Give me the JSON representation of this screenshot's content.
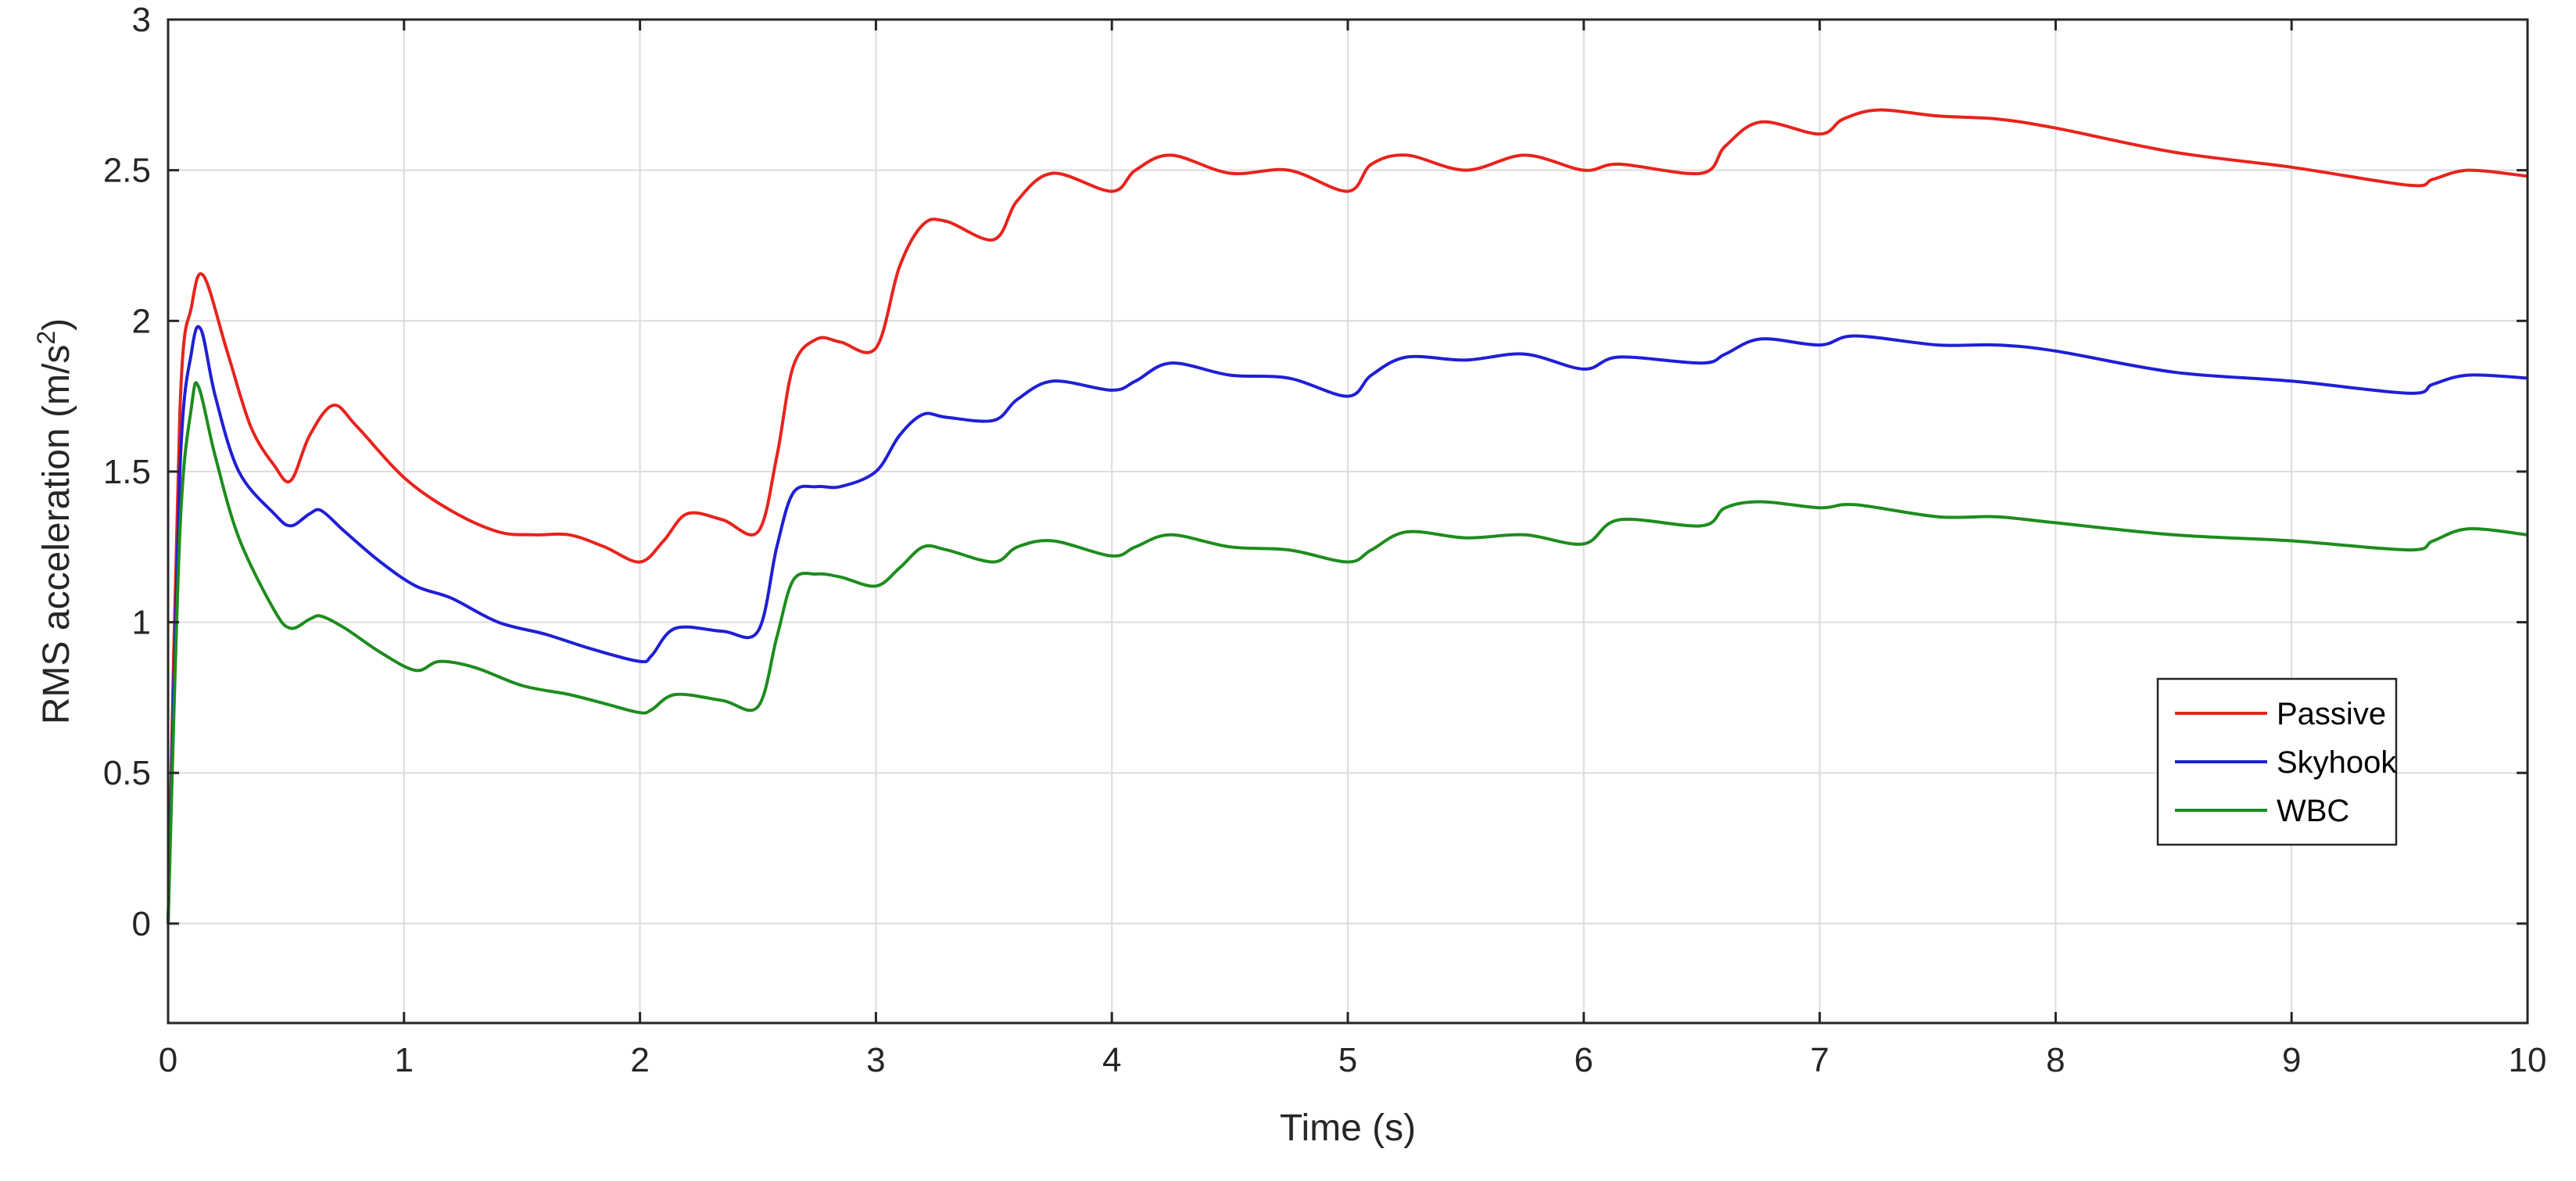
{
  "chart_data": {
    "type": "line",
    "title": "",
    "xlabel": "Time (s)",
    "ylabel": "RMS acceleration (m/s",
    "ylabel_superscript": "2",
    "ylabel_suffix": ")",
    "xlim": [
      0,
      10
    ],
    "ylim": [
      -0.33,
      3
    ],
    "xticks": [
      0,
      1,
      2,
      3,
      4,
      5,
      6,
      7,
      8,
      9,
      10
    ],
    "yticks": [
      0,
      0.5,
      1,
      1.5,
      2,
      2.5,
      3
    ],
    "ytick_labels": [
      "0",
      "0.5",
      "1",
      "1.5",
      "2",
      "2.5",
      "3"
    ],
    "grid": true,
    "legend_position": "right",
    "series": [
      {
        "name": "Passive",
        "color": "#e8231d",
        "x": [
          0,
          0.05,
          0.1,
          0.15,
          0.25,
          0.35,
          0.45,
          0.52,
          0.6,
          0.7,
          0.8,
          1.0,
          1.2,
          1.4,
          1.55,
          1.7,
          1.85,
          2.0,
          2.1,
          2.2,
          2.35,
          2.5,
          2.58,
          2.65,
          2.75,
          2.85,
          3.0,
          3.1,
          3.2,
          3.3,
          3.5,
          3.6,
          3.75,
          4.0,
          4.1,
          4.25,
          4.5,
          4.75,
          5.0,
          5.1,
          5.25,
          5.5,
          5.75,
          6.0,
          6.15,
          6.5,
          6.6,
          6.75,
          7.0,
          7.1,
          7.25,
          7.5,
          7.75,
          8.0,
          8.5,
          9.0,
          9.5,
          9.6,
          9.75,
          10.0
        ],
        "values": [
          0.0,
          1.7,
          2.05,
          2.15,
          1.9,
          1.65,
          1.52,
          1.47,
          1.62,
          1.72,
          1.65,
          1.48,
          1.37,
          1.3,
          1.29,
          1.29,
          1.25,
          1.2,
          1.27,
          1.36,
          1.34,
          1.3,
          1.55,
          1.85,
          1.94,
          1.93,
          1.91,
          2.18,
          2.32,
          2.33,
          2.27,
          2.4,
          2.49,
          2.43,
          2.5,
          2.55,
          2.49,
          2.5,
          2.43,
          2.52,
          2.55,
          2.5,
          2.55,
          2.5,
          2.52,
          2.49,
          2.58,
          2.66,
          2.62,
          2.67,
          2.7,
          2.68,
          2.67,
          2.64,
          2.56,
          2.51,
          2.45,
          2.47,
          2.5,
          2.48
        ]
      },
      {
        "name": "Skyhook",
        "color": "#1f1fd6",
        "x": [
          0,
          0.05,
          0.1,
          0.14,
          0.2,
          0.3,
          0.45,
          0.52,
          0.6,
          0.65,
          0.75,
          0.9,
          1.05,
          1.2,
          1.4,
          1.6,
          1.8,
          2.0,
          2.05,
          2.15,
          2.35,
          2.5,
          2.58,
          2.65,
          2.75,
          2.85,
          3.0,
          3.1,
          3.2,
          3.3,
          3.5,
          3.6,
          3.75,
          4.0,
          4.1,
          4.25,
          4.5,
          4.75,
          5.0,
          5.1,
          5.25,
          5.5,
          5.75,
          6.0,
          6.15,
          6.5,
          6.6,
          6.75,
          7.0,
          7.15,
          7.5,
          7.75,
          8.0,
          8.5,
          9.0,
          9.5,
          9.6,
          9.75,
          10.0
        ],
        "values": [
          0.0,
          1.5,
          1.9,
          1.97,
          1.75,
          1.5,
          1.36,
          1.32,
          1.36,
          1.37,
          1.3,
          1.2,
          1.12,
          1.08,
          1.0,
          0.96,
          0.91,
          0.87,
          0.89,
          0.98,
          0.97,
          0.97,
          1.25,
          1.43,
          1.45,
          1.45,
          1.5,
          1.62,
          1.69,
          1.68,
          1.67,
          1.74,
          1.8,
          1.77,
          1.8,
          1.86,
          1.82,
          1.81,
          1.75,
          1.82,
          1.88,
          1.87,
          1.89,
          1.84,
          1.88,
          1.86,
          1.89,
          1.94,
          1.92,
          1.95,
          1.92,
          1.92,
          1.9,
          1.83,
          1.8,
          1.76,
          1.79,
          1.82,
          1.81
        ]
      },
      {
        "name": "WBC",
        "color": "#1e8c1e",
        "x": [
          0,
          0.05,
          0.1,
          0.13,
          0.2,
          0.3,
          0.45,
          0.52,
          0.6,
          0.65,
          0.75,
          0.9,
          1.05,
          1.15,
          1.3,
          1.5,
          1.7,
          1.85,
          2.0,
          2.05,
          2.15,
          2.35,
          2.5,
          2.58,
          2.65,
          2.75,
          2.85,
          3.0,
          3.1,
          3.2,
          3.3,
          3.5,
          3.6,
          3.75,
          4.0,
          4.1,
          4.25,
          4.5,
          4.75,
          5.0,
          5.1,
          5.25,
          5.5,
          5.75,
          6.0,
          6.15,
          6.5,
          6.6,
          6.75,
          7.0,
          7.15,
          7.5,
          7.75,
          8.0,
          8.5,
          9.0,
          9.5,
          9.6,
          9.75,
          10.0
        ],
        "values": [
          0.0,
          1.3,
          1.72,
          1.78,
          1.55,
          1.28,
          1.04,
          0.98,
          1.01,
          1.02,
          0.98,
          0.9,
          0.84,
          0.87,
          0.85,
          0.79,
          0.76,
          0.73,
          0.7,
          0.71,
          0.76,
          0.74,
          0.72,
          0.95,
          1.14,
          1.16,
          1.15,
          1.12,
          1.18,
          1.25,
          1.24,
          1.2,
          1.25,
          1.27,
          1.22,
          1.25,
          1.29,
          1.25,
          1.24,
          1.2,
          1.24,
          1.3,
          1.28,
          1.29,
          1.26,
          1.34,
          1.32,
          1.38,
          1.4,
          1.38,
          1.39,
          1.35,
          1.35,
          1.33,
          1.29,
          1.27,
          1.24,
          1.27,
          1.31,
          1.29
        ]
      }
    ]
  }
}
